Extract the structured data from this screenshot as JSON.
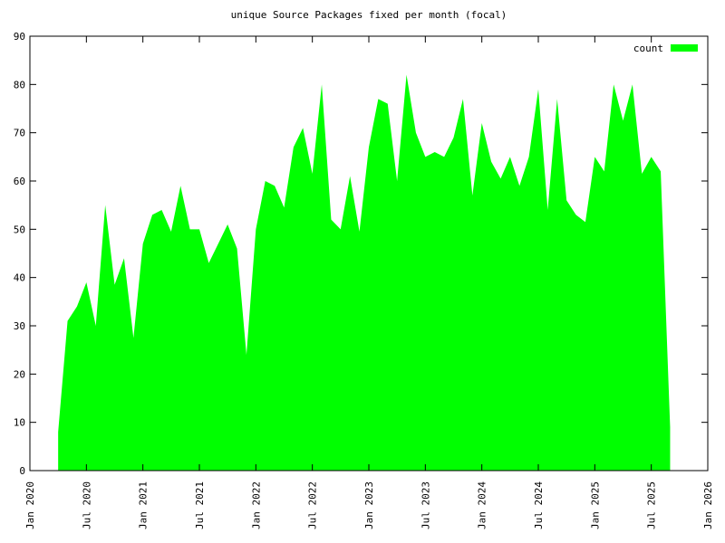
{
  "chart_data": {
    "type": "area",
    "title": "unique Source Packages fixed per month (focal)",
    "x": [
      "2020-04",
      "2020-05",
      "2020-06",
      "2020-07",
      "2020-08",
      "2020-09",
      "2020-10",
      "2020-11",
      "2020-12",
      "2021-01",
      "2021-02",
      "2021-03",
      "2021-04",
      "2021-05",
      "2021-06",
      "2021-07",
      "2021-08",
      "2021-09",
      "2021-10",
      "2021-11",
      "2021-12",
      "2022-01",
      "2022-02",
      "2022-03",
      "2022-04",
      "2022-05",
      "2022-06",
      "2022-07",
      "2022-08",
      "2022-09",
      "2022-10",
      "2022-11",
      "2022-12",
      "2023-01",
      "2023-02",
      "2023-03",
      "2023-04",
      "2023-05",
      "2023-06",
      "2023-07",
      "2023-08",
      "2023-09",
      "2023-10",
      "2023-11",
      "2023-12",
      "2024-01",
      "2024-02",
      "2024-03",
      "2024-04",
      "2024-05",
      "2024-06",
      "2024-07",
      "2024-08",
      "2024-09",
      "2024-10",
      "2024-11",
      "2024-12",
      "2025-01",
      "2025-02",
      "2025-03",
      "2025-04",
      "2025-05",
      "2025-06",
      "2025-07",
      "2025-08",
      "2025-09"
    ],
    "series": [
      {
        "name": "count",
        "color": "#00ff00",
        "values": [
          8,
          31,
          34,
          39,
          30,
          55,
          38.5,
          44,
          27.5,
          47,
          53,
          54,
          49.5,
          59,
          50,
          50,
          43,
          47,
          51,
          46,
          24,
          50,
          60,
          59,
          54.5,
          67,
          71,
          61.5,
          80,
          52,
          50,
          61,
          49.5,
          67,
          77,
          76,
          60,
          82,
          70,
          65,
          66,
          65,
          69,
          77,
          57,
          72,
          64,
          60.5,
          65,
          59,
          65,
          79,
          54,
          77,
          56,
          53,
          51.5,
          65,
          62,
          80,
          72.5,
          80,
          61.5,
          65,
          62,
          9
        ]
      }
    ],
    "xlim": [
      "2020-01",
      "2026-01"
    ],
    "xticks": [
      {
        "value": "2020-01",
        "label": "Jan 2020"
      },
      {
        "value": "2020-07",
        "label": "Jul 2020"
      },
      {
        "value": "2021-01",
        "label": "Jan 2021"
      },
      {
        "value": "2021-07",
        "label": "Jul 2021"
      },
      {
        "value": "2022-01",
        "label": "Jan 2022"
      },
      {
        "value": "2022-07",
        "label": "Jul 2022"
      },
      {
        "value": "2023-01",
        "label": "Jan 2023"
      },
      {
        "value": "2023-07",
        "label": "Jul 2023"
      },
      {
        "value": "2024-01",
        "label": "Jan 2024"
      },
      {
        "value": "2024-07",
        "label": "Jul 2024"
      },
      {
        "value": "2025-01",
        "label": "Jan 2025"
      },
      {
        "value": "2025-07",
        "label": "Jul 2025"
      },
      {
        "value": "2026-01",
        "label": "Jan 2026"
      }
    ],
    "ylim": [
      0,
      90
    ],
    "yticks": [
      0,
      10,
      20,
      30,
      40,
      50,
      60,
      70,
      80,
      90
    ],
    "legend": "top-right"
  }
}
